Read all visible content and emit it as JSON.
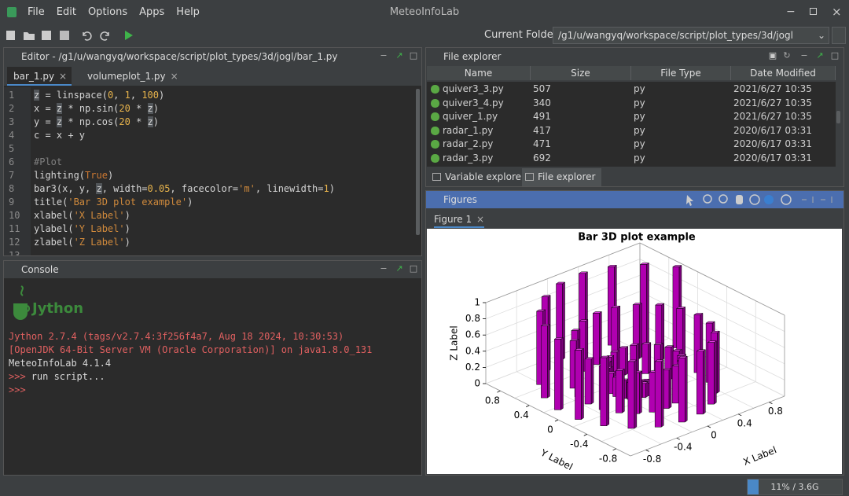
{
  "window": {
    "title": "MeteoInfoLab",
    "menu": [
      "File",
      "Edit",
      "Options",
      "Apps",
      "Help"
    ]
  },
  "toolbar": {
    "folder_label": "Current Folder:",
    "folder": "/g1/u/wangyq/workspace/script/plot_types/3d/jogl"
  },
  "editor": {
    "title": "Editor - /g1/u/wangyq/workspace/script/plot_types/3d/jogl/bar_1.py",
    "tabs": [
      "bar_1.py",
      "volumeplot_1.py"
    ],
    "line_numbers": [
      1,
      2,
      3,
      4,
      5,
      6,
      7,
      8,
      9,
      10,
      11,
      12,
      13
    ],
    "lines": [
      "z = linspace(0, 1, 100)",
      "x = z * np.sin(20 * z)",
      "y = z * np.cos(20 * z)",
      "c = x + y",
      null,
      "#Plot",
      "lighting(True)",
      "bar3(x, y, z, width=0.05, facecolor='m', linewidth=1)",
      "title('Bar 3D plot example')",
      "xlabel('X Label')",
      "ylabel('Y Label')",
      "zlabel('Z Label')",
      null
    ]
  },
  "console": {
    "title": "Console",
    "logo": "Jython",
    "lines": [
      {
        "text": "Jython 2.7.4 (tags/v2.7.4:3f256f4a7, Aug 18 2024, 10:30:53)",
        "color": "#e06060"
      },
      {
        "text": "[OpenJDK 64-Bit Server VM (Oracle Corporation)] on java1.8.0_131",
        "color": "#e06060"
      },
      {
        "text": "MeteoInfoLab 4.1.4",
        "color": "#d8d8d8"
      },
      {
        "prompt": ">>>",
        "text": "run script...",
        "color": "#d8d8d8"
      },
      {
        "prompt": ">>>"
      }
    ]
  },
  "file_explorer": {
    "title": "File explorer",
    "columns": [
      "Name",
      "Size",
      "File Type",
      "Date Modified"
    ],
    "rows": [
      [
        "quiver3_3.py",
        "507",
        "py",
        "2021/6/27 10:35"
      ],
      [
        "quiver3_4.py",
        "340",
        "py",
        "2021/6/27 10:35"
      ],
      [
        "quiver_1.py",
        "491",
        "py",
        "2021/6/27 10:35"
      ],
      [
        "radar_1.py",
        "417",
        "py",
        "2020/6/17 03:31"
      ],
      [
        "radar_2.py",
        "471",
        "py",
        "2020/6/17 03:31"
      ],
      [
        "radar_3.py",
        "692",
        "py",
        "2020/6/17 03:31"
      ]
    ],
    "tabs": [
      "Variable explorer",
      "File explorer"
    ]
  },
  "figures": {
    "title": "Figures",
    "tab": "Figure 1",
    "plot": {
      "title": "Bar 3D plot example",
      "xlabel": "X Label",
      "ylabel": "Y Label",
      "zlabel": "Z Label",
      "xticks": [
        -0.8,
        -0.4,
        0,
        0.4,
        0.8
      ],
      "yticks": [
        -0.8,
        -0.4,
        0,
        0.4,
        0.8
      ],
      "zticks": [
        0,
        0.2,
        0.4,
        0.6,
        0.8,
        1
      ]
    }
  },
  "status": {
    "memory": "11% / 3.6G"
  }
}
